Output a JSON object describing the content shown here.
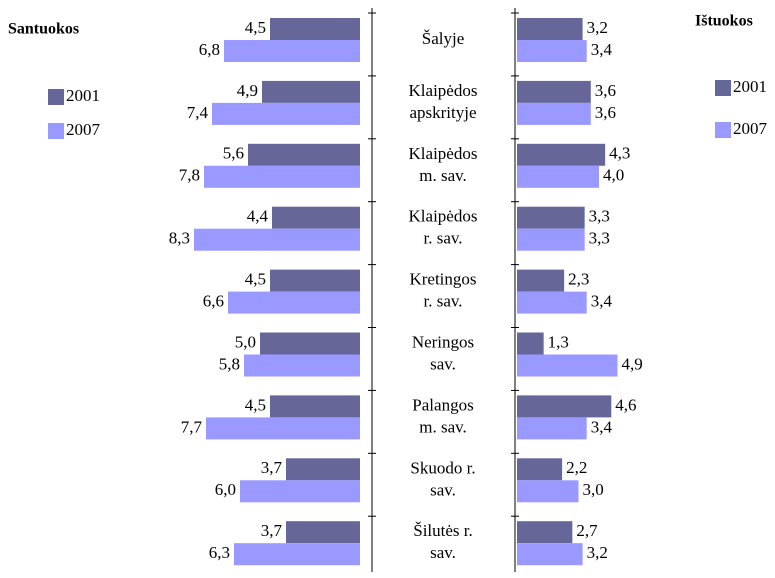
{
  "chart_data": {
    "type": "butterfly",
    "categories": [
      "Šalyje",
      "Klaipėdos\napskrityje",
      "Klaipėdos\nm. sav.",
      "Klaipėdos\nr. sav.",
      "Kretingos\nr. sav.",
      "Neringos\nsav.",
      "Palangos\nm. sav.",
      "Skuodo r.\nsav.",
      "Šilutės r.\nsav."
    ],
    "panels": [
      {
        "title": "Santuokos",
        "direction": "left",
        "series": [
          {
            "name": "2001",
            "color": "#666699",
            "values": [
              4.5,
              4.9,
              5.6,
              4.4,
              4.5,
              5.0,
              4.5,
              3.7,
              3.7
            ],
            "value_labels": [
              "4,5",
              "4,9",
              "5,6",
              "4,4",
              "4,5",
              "5,0",
              "4,5",
              "3,7",
              "3,7"
            ]
          },
          {
            "name": "2007",
            "color": "#9999ff",
            "values": [
              6.8,
              7.4,
              7.8,
              8.3,
              6.6,
              5.8,
              7.7,
              6.0,
              6.3
            ],
            "value_labels": [
              "6,8",
              "7,4",
              "7,8",
              "8,3",
              "6,6",
              "5,8",
              "7,7",
              "6,0",
              "6,3"
            ]
          }
        ]
      },
      {
        "title": "Ištuokos",
        "direction": "right",
        "series": [
          {
            "name": "2001",
            "color": "#666699",
            "values": [
              3.2,
              3.6,
              4.3,
              3.3,
              2.3,
              1.3,
              4.6,
              2.2,
              2.7
            ],
            "value_labels": [
              "3,2",
              "3,6",
              "4,3",
              "3,3",
              "2,3",
              "1,3",
              "4,6",
              "2,2",
              "2,7"
            ]
          },
          {
            "name": "2007",
            "color": "#9999ff",
            "values": [
              3.4,
              3.6,
              4.0,
              3.3,
              3.4,
              4.9,
              3.4,
              3.0,
              3.2
            ],
            "value_labels": [
              "3,4",
              "3,6",
              "4,0",
              "3,3",
              "3,4",
              "4,9",
              "3,4",
              "3,0",
              "3,2"
            ]
          }
        ]
      }
    ]
  }
}
